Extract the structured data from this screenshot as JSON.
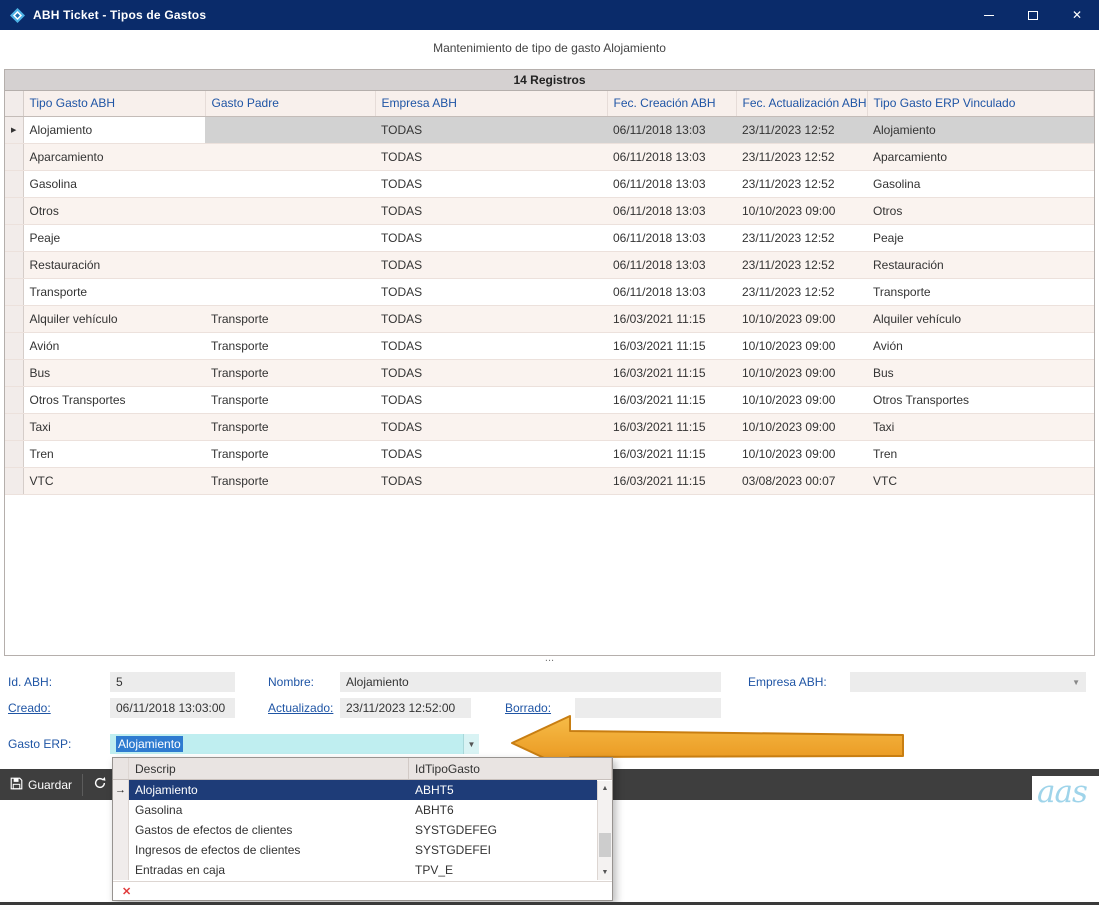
{
  "window": {
    "title": "ABH Ticket - Tipos de Gastos"
  },
  "subtitle": "Mantenimiento de tipo de gasto Alojamiento",
  "grid": {
    "count_label": "14 Registros",
    "columns": [
      "Tipo Gasto ABH",
      "Gasto Padre",
      "Empresa ABH",
      "Fec. Creación ABH",
      "Fec. Actualización ABH",
      "Tipo Gasto ERP Vinculado"
    ],
    "rows": [
      {
        "tipo": "Alojamiento",
        "padre": "",
        "empresa": "TODAS",
        "creacion": "06/11/2018 13:03",
        "actualizacion": "23/11/2023 12:52",
        "erp": "Alojamiento",
        "selected": true
      },
      {
        "tipo": "Aparcamiento",
        "padre": "",
        "empresa": "TODAS",
        "creacion": "06/11/2018 13:03",
        "actualizacion": "23/11/2023 12:52",
        "erp": "Aparcamiento"
      },
      {
        "tipo": "Gasolina",
        "padre": "",
        "empresa": "TODAS",
        "creacion": "06/11/2018 13:03",
        "actualizacion": "23/11/2023 12:52",
        "erp": "Gasolina"
      },
      {
        "tipo": "Otros",
        "padre": "",
        "empresa": "TODAS",
        "creacion": "06/11/2018 13:03",
        "actualizacion": "10/10/2023 09:00",
        "erp": "Otros"
      },
      {
        "tipo": "Peaje",
        "padre": "",
        "empresa": "TODAS",
        "creacion": "06/11/2018 13:03",
        "actualizacion": "23/11/2023 12:52",
        "erp": "Peaje"
      },
      {
        "tipo": "Restauración",
        "padre": "",
        "empresa": "TODAS",
        "creacion": "06/11/2018 13:03",
        "actualizacion": "23/11/2023 12:52",
        "erp": "Restauración"
      },
      {
        "tipo": "Transporte",
        "padre": "",
        "empresa": "TODAS",
        "creacion": "06/11/2018 13:03",
        "actualizacion": "23/11/2023 12:52",
        "erp": "Transporte"
      },
      {
        "tipo": "Alquiler vehículo",
        "padre": "Transporte",
        "empresa": "TODAS",
        "creacion": "16/03/2021 11:15",
        "actualizacion": "10/10/2023 09:00",
        "erp": "Alquiler vehículo"
      },
      {
        "tipo": "Avión",
        "padre": "Transporte",
        "empresa": "TODAS",
        "creacion": "16/03/2021 11:15",
        "actualizacion": "10/10/2023 09:00",
        "erp": "Avión"
      },
      {
        "tipo": "Bus",
        "padre": "Transporte",
        "empresa": "TODAS",
        "creacion": "16/03/2021 11:15",
        "actualizacion": "10/10/2023 09:00",
        "erp": "Bus"
      },
      {
        "tipo": "Otros Transportes",
        "padre": "Transporte",
        "empresa": "TODAS",
        "creacion": "16/03/2021 11:15",
        "actualizacion": "10/10/2023 09:00",
        "erp": "Otros Transportes"
      },
      {
        "tipo": "Taxi",
        "padre": "Transporte",
        "empresa": "TODAS",
        "creacion": "16/03/2021 11:15",
        "actualizacion": "10/10/2023 09:00",
        "erp": "Taxi"
      },
      {
        "tipo": "Tren",
        "padre": "Transporte",
        "empresa": "TODAS",
        "creacion": "16/03/2021 11:15",
        "actualizacion": "10/10/2023 09:00",
        "erp": "Tren"
      },
      {
        "tipo": "VTC",
        "padre": "Transporte",
        "empresa": "TODAS",
        "creacion": "16/03/2021 11:15",
        "actualizacion": "03/08/2023 00:07",
        "erp": "VTC"
      }
    ]
  },
  "form": {
    "id_label": "Id. ABH:",
    "id_value": "5",
    "nombre_label": "Nombre:",
    "nombre_value": "Alojamiento",
    "empresa_label": "Empresa ABH:",
    "empresa_value": "",
    "creado_label": "Creado:",
    "creado_value": "06/11/2018 13:03:00",
    "actualizado_label": "Actualizado:",
    "actualizado_value": "23/11/2023 12:52:00",
    "borrado_label": "Borrado:",
    "borrado_value": "",
    "gasto_erp_label": "Gasto ERP:",
    "gasto_erp_value": "Alojamiento"
  },
  "toolbar": {
    "guardar_label": "Guardar"
  },
  "dropdown": {
    "columns": [
      "Descrip",
      "IdTipoGasto"
    ],
    "rows": [
      {
        "descrip": "Alojamiento",
        "id": "ABHT5",
        "selected": true
      },
      {
        "descrip": "Gasolina",
        "id": "ABHT6"
      },
      {
        "descrip": "Gastos de efectos de clientes",
        "id": "SYSTGDEFEG"
      },
      {
        "descrip": "Ingresos de efectos de clientes",
        "id": "SYSTGDEFEI"
      },
      {
        "descrip": "Entradas en caja",
        "id": "TPV_E"
      }
    ]
  },
  "logo_text": "aas",
  "icons": {
    "row_indicator": "▶",
    "selected_arrow": "→",
    "dropdown_arrow": "▼",
    "scroll_up": "▲",
    "scroll_down": "▼",
    "clear": "✕",
    "close": "✕",
    "splitter_grip": "..."
  }
}
